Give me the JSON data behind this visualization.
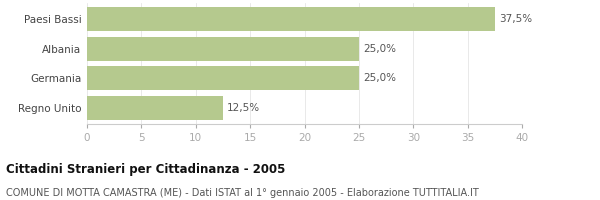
{
  "categories": [
    "Paesi Bassi",
    "Albania",
    "Germania",
    "Regno Unito"
  ],
  "values": [
    37.5,
    25.0,
    25.0,
    12.5
  ],
  "labels": [
    "37,5%",
    "25,0%",
    "25,0%",
    "12,5%"
  ],
  "bar_color": "#b5c98e",
  "xlim": [
    0,
    40
  ],
  "xticks": [
    0,
    5,
    10,
    15,
    20,
    25,
    30,
    35,
    40
  ],
  "title": "Cittadini Stranieri per Cittadinanza - 2005",
  "subtitle": "COMUNE DI MOTTA CAMASTRA (ME) - Dati ISTAT al 1° gennaio 2005 - Elaborazione TUTTITALIA.IT",
  "title_fontsize": 8.5,
  "subtitle_fontsize": 7,
  "label_fontsize": 7.5,
  "tick_fontsize": 7.5,
  "background_color": "#ffffff",
  "bar_height": 0.82
}
